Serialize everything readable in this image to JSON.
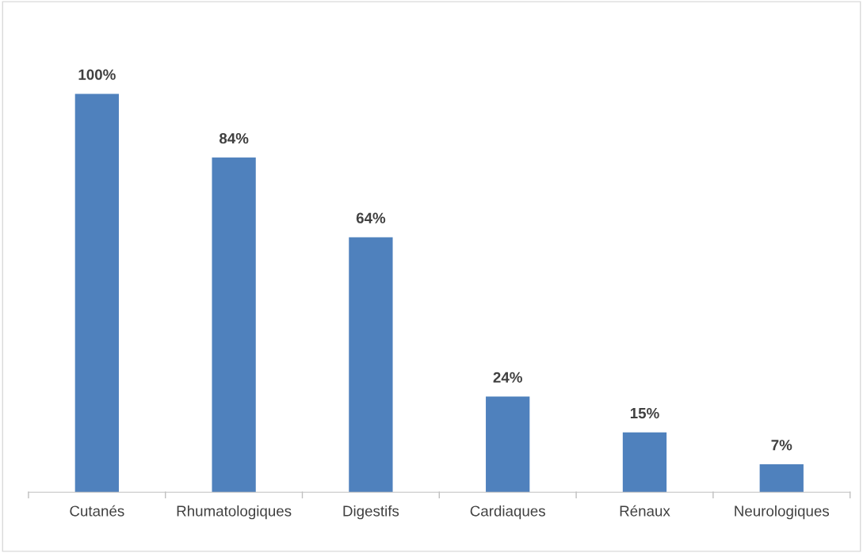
{
  "chart_data": {
    "type": "bar",
    "categories": [
      "Cutanés",
      "Rhumatologiques",
      "Digestifs",
      "Cardiaques",
      "Rénaux",
      "Neurologiques"
    ],
    "values": [
      100,
      84,
      64,
      24,
      15,
      7
    ],
    "value_labels": [
      "100%",
      "84%",
      "64%",
      "24%",
      "15%",
      "7%"
    ],
    "color": "#4f81bd",
    "tick_labels": "x",
    "grid": false
  }
}
